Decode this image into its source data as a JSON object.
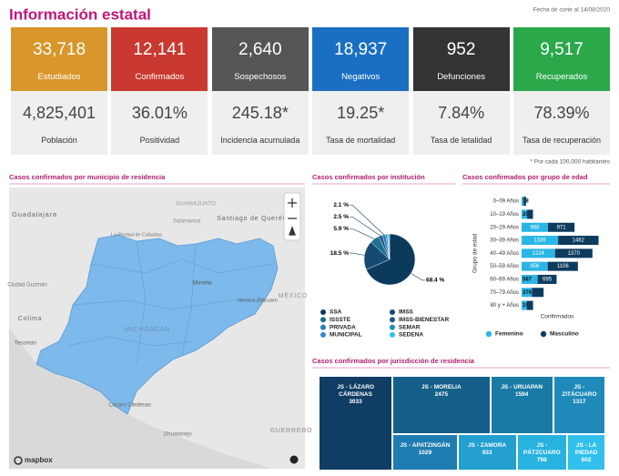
{
  "header": {
    "title": "Información estatal",
    "date": "Fecha de corte al 14/08/2020"
  },
  "cards": [
    {
      "value": "33,718",
      "label": "Estudiados",
      "color": "#d8962b"
    },
    {
      "value": "12,141",
      "label": "Confirmados",
      "color": "#c9392f"
    },
    {
      "value": "2,640",
      "label": "Sospechosos",
      "color": "#555555"
    },
    {
      "value": "18,937",
      "label": "Negativos",
      "color": "#1b6fc2"
    },
    {
      "value": "952",
      "label": "Defunciones",
      "color": "#333333"
    },
    {
      "value": "9,517",
      "label": "Recuperados",
      "color": "#2aa84a"
    }
  ],
  "indicators": [
    {
      "value": "4,825,401",
      "label": "Población"
    },
    {
      "value": "36.01%",
      "label": "Positividad"
    },
    {
      "value": "245.18*",
      "label": "Incidencia acumulada"
    },
    {
      "value": "19.25*",
      "label": "Tasa de mortalidad"
    },
    {
      "value": "7.84%",
      "label": "Tasa de letalidad"
    },
    {
      "value": "78.39%",
      "label": "Tasa de recuperación"
    }
  ],
  "footnote": "* Por cada 100,000 habitantes",
  "map": {
    "title": "Casos confirmados por municipio de residencia",
    "labels": [
      "GUANAJUATO",
      "Guadalajara",
      "Salamanca",
      "Santiago de Querétaro",
      "La Piedad de Cabadas",
      "Ciudad Guzmán",
      "Morelia",
      "Heroica Zitácuaro",
      "MICHOACAN",
      "Colima",
      "Tecomán",
      "Lázaro Cárdenas",
      "Zihuatanejo",
      "GUERRERO",
      "MÉXICO"
    ],
    "attribution": "mapbox",
    "fill": "#7db9ea"
  },
  "chart_data": [
    {
      "type": "pie",
      "title": "Casos confirmados por institución",
      "categories": [
        "SSA",
        "IMSS",
        "ISSSTE",
        "IMSS-BIENESTAR",
        "PRIVADA",
        "SEMAR",
        "MUNICIPAL",
        "SEDENA"
      ],
      "values": [
        68.4,
        18.5,
        5.9,
        2.5,
        2.1,
        1.2,
        0.6,
        0.8
      ],
      "value_labels": [
        "68.4 %",
        "18.5 %",
        "5.9 %",
        "2.5 %",
        "2.1 %",
        null,
        null,
        null
      ],
      "colors": [
        "#0c3a5c",
        "#174a72",
        "#1b6f8f",
        "#23598a",
        "#2b7bbf",
        "#1e8fb3",
        "#3a86d0",
        "#2cc3ec"
      ]
    },
    {
      "type": "bar",
      "orientation": "horizontal",
      "stacked": true,
      "title": "Casos confirmados por grupo de edad",
      "ylabel": "Grupo de edad",
      "xlabel": "Confirmados",
      "categories": [
        "0–09 Años",
        "10–19 Años",
        "20–29 Años",
        "30–39 Años",
        "40–49 Años",
        "50–59 Años",
        "60–69 Años",
        "70–79 Años",
        "80 y + Años"
      ],
      "xlim": [
        0,
        3000
      ],
      "series": [
        {
          "name": "Femenino",
          "color": "#29b6e6",
          "values": [
            78,
            203,
            968,
            1336,
            1224,
            956,
            587,
            376,
            190
          ]
        },
        {
          "name": "Masculino",
          "color": "#0d3b5e",
          "values": [
            85,
            215,
            971,
            1482,
            1370,
            1106,
            695,
            430,
            230
          ],
          "value_labels": [
            null,
            null,
            "971",
            "1482",
            "1370",
            "1106",
            "695",
            null,
            null
          ]
        }
      ]
    },
    {
      "type": "treemap",
      "title": "Casos confirmados por jurisdicción de residencia",
      "categories": [
        "JS - LÁZARO CÁRDENAS",
        "JS - MORELIA",
        "JS - URUAPAN",
        "JS - ZITÁCUARO",
        "JS - APATZINGÁN",
        "JS - ZAMORA",
        "JS - PÁTZCUARO",
        "JS - LA PIEDAD"
      ],
      "values": [
        3033,
        2475,
        1594,
        1317,
        1029,
        933,
        798,
        602
      ],
      "colors": [
        "#0f3d63",
        "#15608a",
        "#1a7aa6",
        "#1f8ab9",
        "#1f7cb3",
        "#239fd0",
        "#28b2e0",
        "#31c0ec"
      ]
    }
  ]
}
